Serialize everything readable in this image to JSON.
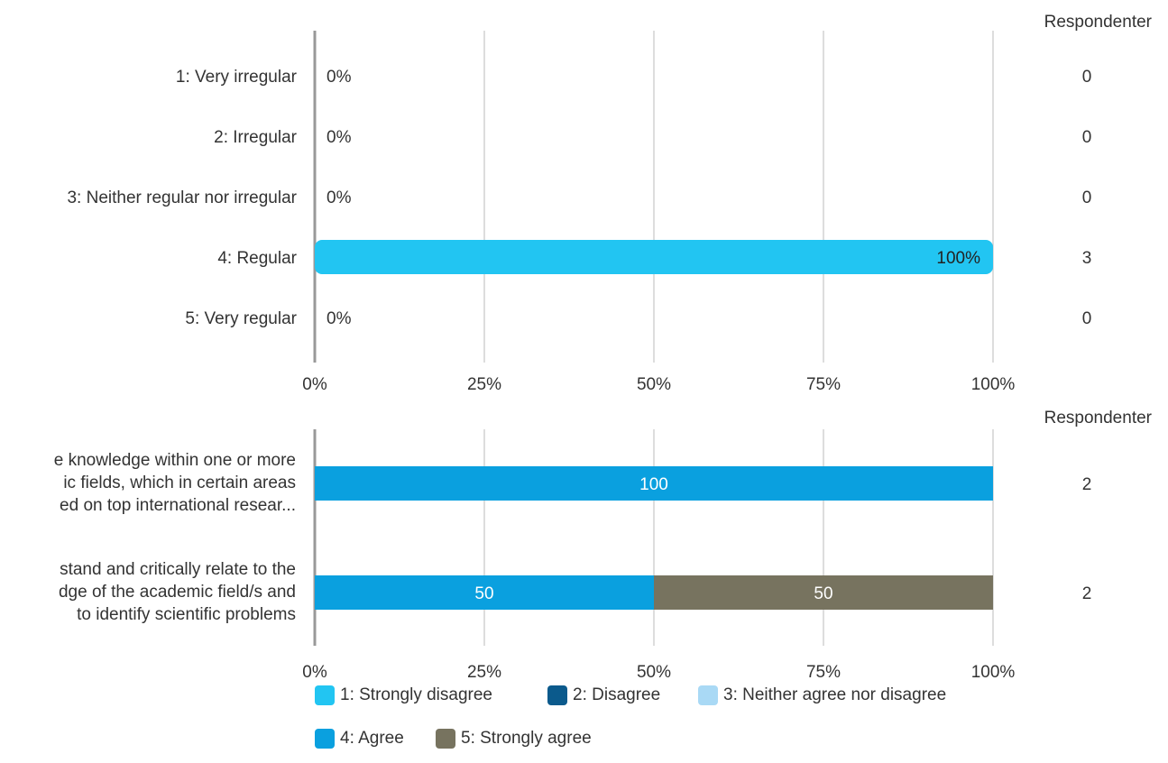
{
  "chart_data": [
    {
      "type": "bar",
      "orientation": "horizontal",
      "categories": [
        "1: Very irregular",
        "2: Irregular",
        "3: Neither regular nor irregular",
        "4: Regular",
        "5: Very regular"
      ],
      "values": [
        0,
        0,
        0,
        100,
        0
      ],
      "value_labels": [
        "0%",
        "0%",
        "0%",
        "100%",
        "0%"
      ],
      "respondents_header": "Respondenter",
      "respondents": [
        "0",
        "0",
        "0",
        "3",
        "0"
      ],
      "xlim": [
        0,
        100
      ],
      "xticks": [
        "0%",
        "25%",
        "50%",
        "75%",
        "100%"
      ],
      "grid": true,
      "colors": {
        "bar": "#22c5f2",
        "grid": "#bbbbbb",
        "axis": "#999999"
      }
    },
    {
      "type": "bar",
      "orientation": "horizontal",
      "stacked": true,
      "categories": [
        "e knowledge within one or more\nic fields, which in certain areas\ned on  top international resear...",
        "stand and critically relate to the\ndge of the academic field/s and\nto identify scientific problems"
      ],
      "series": [
        {
          "name": "1: Strongly disagree",
          "color": "#22c5f2",
          "values": [
            0,
            0
          ]
        },
        {
          "name": "2: Disagree",
          "color": "#0b5a8c",
          "values": [
            0,
            0
          ]
        },
        {
          "name": "3: Neither agree nor disagree",
          "color": "#a9d9f5",
          "values": [
            0,
            0
          ]
        },
        {
          "name": "4: Agree",
          "color": "#0aa0df",
          "values": [
            100,
            50
          ]
        },
        {
          "name": "5: Strongly agree",
          "color": "#77735f",
          "values": [
            0,
            50
          ]
        }
      ],
      "respondents_header": "Respondenter",
      "respondents": [
        "2",
        "2"
      ],
      "xlim": [
        0,
        100
      ],
      "xticks": [
        "0%",
        "25%",
        "50%",
        "75%",
        "100%"
      ],
      "grid": true,
      "legend_position": "bottom"
    }
  ]
}
